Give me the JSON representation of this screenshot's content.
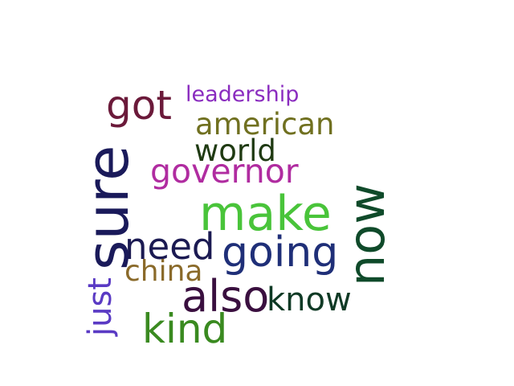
{
  "words": {
    "got": {
      "text": "got",
      "color": "#6b1a3a"
    },
    "leadership": {
      "text": "leadership",
      "color": "#8a2cbf"
    },
    "american": {
      "text": "american",
      "color": "#707020"
    },
    "world": {
      "text": "world",
      "color": "#1f3a12"
    },
    "governor": {
      "text": "governor",
      "color": "#b02ca0"
    },
    "make": {
      "text": "make",
      "color": "#49c43a"
    },
    "need": {
      "text": "need",
      "color": "#1b1a52"
    },
    "going": {
      "text": "going",
      "color": "#1f2f78"
    },
    "china": {
      "text": "china",
      "color": "#8a6a2a"
    },
    "also": {
      "text": "also",
      "color": "#3a0f3f"
    },
    "know": {
      "text": "know",
      "color": "#0f3a25"
    },
    "kind": {
      "text": "kind",
      "color": "#3a8a20"
    },
    "sure": {
      "text": "sure",
      "color": "#1a1a5a"
    },
    "just": {
      "text": "just",
      "color": "#5a3ac4"
    },
    "now": {
      "text": "now",
      "color": "#0f4a2a"
    }
  }
}
